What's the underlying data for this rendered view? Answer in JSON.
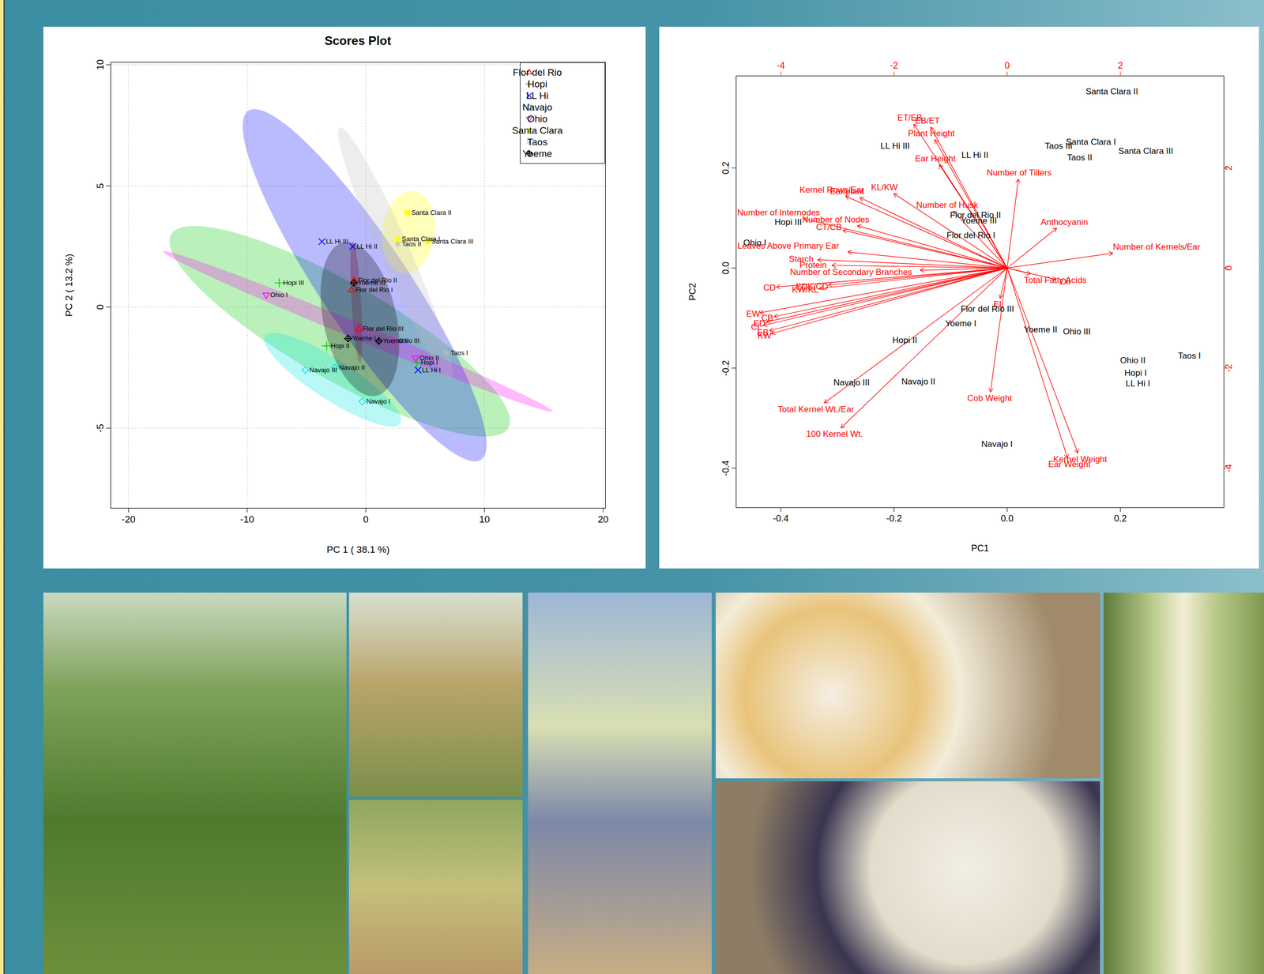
{
  "chart_data": [
    {
      "type": "scatter",
      "title": "Scores Plot",
      "x_label": "PC 1 ( 38.1 %)",
      "y_label": "PC 2 ( 13.2 %)",
      "xlim": [
        -21.5,
        20.2
      ],
      "ylim": [
        -8.3,
        10.1
      ],
      "xticks": [
        -20,
        -10,
        0,
        10,
        20
      ],
      "yticks": [
        -5,
        0,
        5,
        10
      ],
      "grid": true,
      "legend": "top-right",
      "series": [
        {
          "name": "Flor del Rio",
          "color": "#ff0000",
          "marker": "triangle",
          "points": [
            {
              "label": "Flor del Rio II",
              "x": -1.0,
              "y": 1.1
            },
            {
              "label": "Flor del Rio I",
              "x": -1.2,
              "y": 0.7
            },
            {
              "label": "Flor del Rio III",
              "x": -0.6,
              "y": -0.9
            }
          ],
          "ellipse": {
            "center": [
              -0.8,
              0.2
            ],
            "major_end": [
              -1.1,
              2.7
            ],
            "minor_end": [
              -0.4,
              0.2
            ]
          }
        },
        {
          "name": "Hopi",
          "color": "#00cd00",
          "marker": "plus",
          "points": [
            {
              "label": "Hopi III",
              "x": -7.3,
              "y": 1.0
            },
            {
              "label": "Hopi II",
              "x": -3.3,
              "y": -1.6
            },
            {
              "label": "Hopi I",
              "x": 4.3,
              "y": -2.3
            }
          ],
          "ellipse": {
            "center": [
              -2.2,
              -1.0
            ],
            "major_end": [
              -16.4,
              3.0
            ],
            "minor_end": [
              -0.1,
              0.7
            ]
          }
        },
        {
          "name": "LL Hi",
          "color": "#0000ff",
          "marker": "times",
          "points": [
            {
              "label": "LL Hi III",
              "x": -3.7,
              "y": 2.7
            },
            {
              "label": "LL Hi II",
              "x": -1.1,
              "y": 2.5
            },
            {
              "label": "LL Hi I",
              "x": 4.4,
              "y": -2.6
            }
          ],
          "ellipse": {
            "center": [
              -0.1,
              0.9
            ],
            "major_end": [
              -9.9,
              8.1
            ],
            "minor_end": [
              3.0,
              1.9
            ]
          }
        },
        {
          "name": "Navajo",
          "color": "#00e5e5",
          "marker": "diamond",
          "points": [
            {
              "label": "Navajo III",
              "x": -5.1,
              "y": -2.6
            },
            {
              "label": "Navajo II",
              "x": -2.6,
              "y": -2.5
            },
            {
              "label": "Navajo I",
              "x": -0.3,
              "y": -3.9
            }
          ],
          "ellipse": {
            "center": [
              -2.8,
              -3.0
            ],
            "major_end": [
              -8.5,
              -1.2
            ],
            "minor_end": [
              -1.9,
              -2.3
            ]
          }
        },
        {
          "name": "Ohio",
          "color": "#ff00ff",
          "marker": "triangle-down",
          "points": [
            {
              "label": "Ohio I",
              "x": -8.4,
              "y": 0.5
            },
            {
              "label": "Ohio III",
              "x": 2.4,
              "y": -1.4
            },
            {
              "label": "Ohio II",
              "x": 4.2,
              "y": -2.1
            }
          ],
          "ellipse": {
            "center": [
              -0.7,
              -1.0
            ],
            "major_end": [
              -17.1,
              2.3
            ],
            "minor_end": [
              -0.4,
              -0.7
            ]
          }
        },
        {
          "name": "Santa Clara",
          "color": "#ffff00",
          "marker": "square",
          "points": [
            {
              "label": "Santa Clara II",
              "x": 3.5,
              "y": 3.9
            },
            {
              "label": "Santa Clara I",
              "x": 2.7,
              "y": 2.8
            },
            {
              "label": "Santa Clara III",
              "x": 5.2,
              "y": 2.7
            }
          ],
          "ellipse": {
            "center": [
              3.6,
              3.1
            ],
            "major_end": [
              4.0,
              4.8
            ],
            "minor_end": [
              5.8,
              3.0
            ]
          }
        },
        {
          "name": "Taos",
          "color": "#bebebe",
          "marker": "asterisk",
          "points": [
            {
              "label": "Taos II",
              "x": 2.7,
              "y": 2.6
            },
            {
              "label": "Taos I",
              "x": 6.8,
              "y": -1.9
            }
          ],
          "ellipse": {
            "center": [
              2.5,
              2.2
            ],
            "major_end": [
              -2.2,
              7.4
            ],
            "minor_end": [
              3.6,
              2.5
            ]
          }
        },
        {
          "name": "Yoeme",
          "color": "#000000",
          "marker": "diamond-plus",
          "points": [
            {
              "label": "Yoeme III",
              "x": -1.0,
              "y": 1.0
            },
            {
              "label": "Yoeme I",
              "x": -1.5,
              "y": -1.3
            },
            {
              "label": "Yoeme II",
              "x": 1.1,
              "y": -1.4
            }
          ],
          "ellipse": {
            "center": [
              -0.5,
              -0.5
            ],
            "major_end": [
              -1.9,
              2.66
            ],
            "minor_end": [
              2.5,
              -0.17
            ]
          }
        }
      ]
    },
    {
      "type": "biplot",
      "x_label": "PC1",
      "y_label": "PC2",
      "grid": false,
      "xlim": [
        -0.479,
        0.383
      ],
      "ylim": [
        -0.479,
        0.384
      ],
      "xticks": [
        -0.4,
        -0.2,
        {
          "value": 0,
          "label": "0.0"
        },
        0.2
      ],
      "yticks": [
        -0.4,
        -0.2,
        {
          "value": 0,
          "label": "0.0"
        },
        0.2
      ],
      "x2lim": [
        -4.79,
        3.83
      ],
      "x2ticks": [
        -4,
        -2,
        0,
        2
      ],
      "y2lim": [
        -4.79,
        3.84
      ],
      "y2ticks": [
        -4,
        -2,
        0,
        2
      ],
      "observations": {
        "color": "#000000",
        "points": [
          {
            "label": "Santa Clara II",
            "x": 0.185,
            "y": 0.353
          },
          {
            "label": "Santa Clara I",
            "x": 0.148,
            "y": 0.252
          },
          {
            "label": "Taos III",
            "x": 0.091,
            "y": 0.244
          },
          {
            "label": "Santa Clara III",
            "x": 0.245,
            "y": 0.234
          },
          {
            "label": "Taos II",
            "x": 0.128,
            "y": 0.221
          },
          {
            "label": "LL Hi III",
            "x": -0.198,
            "y": 0.244
          },
          {
            "label": "LL Hi II",
            "x": -0.057,
            "y": 0.226
          },
          {
            "label": "Flor del Rio II",
            "x": -0.056,
            "y": 0.106
          },
          {
            "label": "Yoeme III",
            "x": -0.05,
            "y": 0.095
          },
          {
            "label": "Flor del Rio I",
            "x": -0.064,
            "y": 0.065
          },
          {
            "label": "Hopi III",
            "x": -0.387,
            "y": 0.092
          },
          {
            "label": "Ohio I",
            "x": -0.446,
            "y": 0.05
          },
          {
            "label": "Flor del Rio III",
            "x": -0.035,
            "y": -0.082
          },
          {
            "label": "Yoeme I",
            "x": -0.082,
            "y": -0.111
          },
          {
            "label": "Yoeme II",
            "x": 0.059,
            "y": -0.123
          },
          {
            "label": "Ohio III",
            "x": 0.123,
            "y": -0.127
          },
          {
            "label": "Hopi II",
            "x": -0.181,
            "y": -0.144
          },
          {
            "label": "Navajo III",
            "x": -0.275,
            "y": -0.229
          },
          {
            "label": "Navajo II",
            "x": -0.157,
            "y": -0.227
          },
          {
            "label": "Navajo I",
            "x": -0.018,
            "y": -0.352
          },
          {
            "label": "Ohio II",
            "x": 0.222,
            "y": -0.185
          },
          {
            "label": "Hopi I",
            "x": 0.227,
            "y": -0.21
          },
          {
            "label": "LL Hi I",
            "x": 0.231,
            "y": -0.231
          },
          {
            "label": "Taos I",
            "x": 0.322,
            "y": -0.176
          }
        ]
      },
      "variables": {
        "color": "#ff0000",
        "points": [
          {
            "label": "ET/EB",
            "x2": -1.72,
            "y2": 3.0
          },
          {
            "label": "EB/ET",
            "x2": -1.41,
            "y2": 2.94
          },
          {
            "label": "Plant Height",
            "x2": -1.34,
            "y2": 2.69
          },
          {
            "label": "Ear Height",
            "x2": -1.27,
            "y2": 2.19
          },
          {
            "label": "Number of Tillers",
            "x2": 0.21,
            "y2": 1.9
          },
          {
            "label": "Kernel Rows/Ear",
            "x2": -3.1,
            "y2": 1.56
          },
          {
            "label": "Ear/plant",
            "x2": -2.83,
            "y2": 1.53
          },
          {
            "label": "KL/KW",
            "x2": -2.17,
            "y2": 1.61
          },
          {
            "label": "Number of Husk",
            "x2": -1.06,
            "y2": 1.26
          },
          {
            "label": "Number of Internodes",
            "x2": -4.04,
            "y2": 1.11
          },
          {
            "label": "Number of Nodes",
            "x2": -3.03,
            "y2": 0.97
          },
          {
            "label": "CT/CB",
            "x2": -3.15,
            "y2": 0.82
          },
          {
            "label": "Anthocyanin",
            "x2": 1.01,
            "y2": 0.92
          },
          {
            "label": "Number of Kernels/Ear",
            "x2": 2.64,
            "y2": 0.42
          },
          {
            "label": "Leaves Above Primary Ear",
            "x2": -3.87,
            "y2": 0.44
          },
          {
            "label": "Starch",
            "x2": -3.64,
            "y2": 0.18
          },
          {
            "label": "Protein",
            "x2": -3.43,
            "y2": 0.06
          },
          {
            "label": "Number of Secondary Branches",
            "x2": -2.76,
            "y2": -0.08
          },
          {
            "label": "CD",
            "x2": -4.2,
            "y2": -0.39
          },
          {
            "label": "EDK/CD",
            "x2": -3.45,
            "y2": -0.37
          },
          {
            "label": "KW/KL",
            "x2": -3.57,
            "y2": -0.44
          },
          {
            "label": "Total Fatty Acids",
            "x2": 0.85,
            "y2": -0.24
          },
          {
            "label": "Oil",
            "x2": 1.02,
            "y2": -0.27
          },
          {
            "label": "EL",
            "x2": -0.15,
            "y2": -0.73
          },
          {
            "label": "EW",
            "x2": -4.49,
            "y2": -0.92
          },
          {
            "label": "CB",
            "x2": -4.24,
            "y2": -1.0
          },
          {
            "label": "ED",
            "x2": -4.38,
            "y2": -1.11
          },
          {
            "label": "CL",
            "x2": -4.43,
            "y2": -1.18
          },
          {
            "label": "EB",
            "x2": -4.32,
            "y2": -1.29
          },
          {
            "label": "KW",
            "x2": -4.29,
            "y2": -1.35
          },
          {
            "label": "Cob Weight",
            "x2": -0.31,
            "y2": -2.6
          },
          {
            "label": "Total Kernel Wt./Ear",
            "x2": -3.38,
            "y2": -2.82
          },
          {
            "label": "100 Kernel Wt.",
            "x2": -3.05,
            "y2": -3.32
          },
          {
            "label": "Kernel Weight",
            "x2": 1.29,
            "y2": -3.82
          },
          {
            "label": "Ear Weight",
            "x2": 1.1,
            "y2": -3.92
          }
        ]
      }
    }
  ]
}
